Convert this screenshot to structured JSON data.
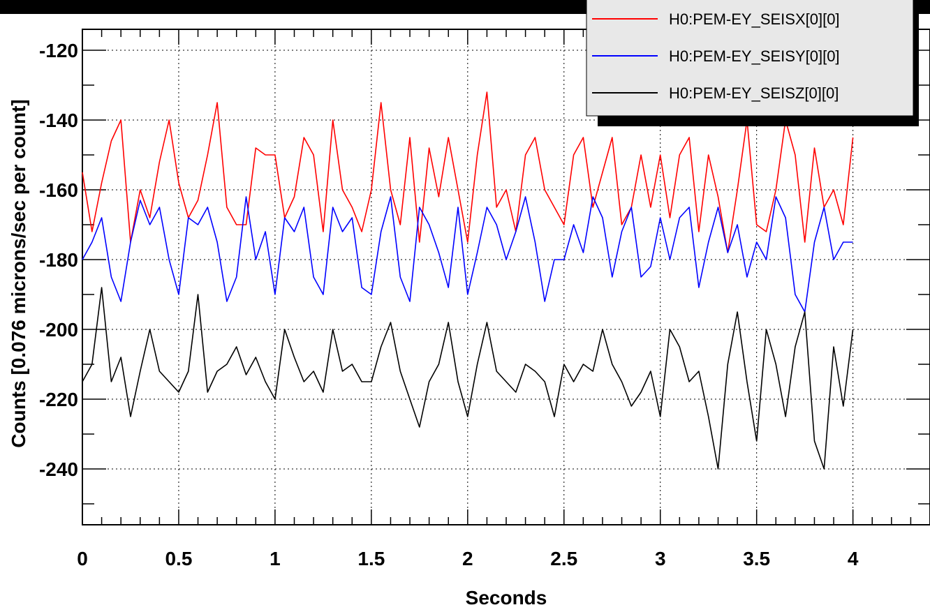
{
  "chart_data": {
    "type": "line",
    "title": "",
    "xlabel": "Seconds",
    "ylabel": "Counts [0.076 microns/sec per count]",
    "xlim": [
      0,
      4.4
    ],
    "ylim": [
      -256,
      -114
    ],
    "x_ticks": [
      0,
      0.5,
      1,
      1.5,
      2,
      2.5,
      3,
      3.5,
      4
    ],
    "x_tick_labels": [
      "0",
      "0.5",
      "1",
      "1.5",
      "2",
      "2.5",
      "3",
      "3.5",
      "4"
    ],
    "y_ticks": [
      -120,
      -140,
      -160,
      -180,
      -200,
      -220,
      -240
    ],
    "y_tick_labels": [
      "-120",
      "-140",
      "-160",
      "-180",
      "-200",
      "-220",
      "-240"
    ],
    "grid": true,
    "legend_position": "top-right",
    "series": [
      {
        "name": "H0:PEM-EY_SEISX[0][0]",
        "color": "#ff0000",
        "x": [
          0,
          0.05,
          0.1,
          0.15,
          0.2,
          0.25,
          0.3,
          0.35,
          0.4,
          0.45,
          0.5,
          0.55,
          0.6,
          0.65,
          0.7,
          0.75,
          0.8,
          0.85,
          0.9,
          0.95,
          1.0,
          1.05,
          1.1,
          1.15,
          1.2,
          1.25,
          1.3,
          1.35,
          1.4,
          1.45,
          1.5,
          1.55,
          1.6,
          1.65,
          1.7,
          1.75,
          1.8,
          1.85,
          1.9,
          1.95,
          2.0,
          2.05,
          2.1,
          2.15,
          2.2,
          2.25,
          2.3,
          2.35,
          2.4,
          2.45,
          2.5,
          2.55,
          2.6,
          2.65,
          2.7,
          2.75,
          2.8,
          2.85,
          2.9,
          2.95,
          3.0,
          3.05,
          3.1,
          3.15,
          3.2,
          3.25,
          3.3,
          3.35,
          3.4,
          3.45,
          3.5,
          3.55,
          3.6,
          3.65,
          3.7,
          3.75,
          3.8,
          3.85,
          3.9,
          3.95,
          4.0
        ],
        "y": [
          -155,
          -172,
          -158,
          -146,
          -140,
          -175,
          -160,
          -168,
          -152,
          -140,
          -158,
          -168,
          -163,
          -150,
          -135,
          -165,
          -170,
          -170,
          -148,
          -150,
          -150,
          -168,
          -162,
          -145,
          -150,
          -172,
          -140,
          -160,
          -165,
          -172,
          -160,
          -135,
          -160,
          -170,
          -145,
          -175,
          -148,
          -162,
          -145,
          -160,
          -175,
          -150,
          -132,
          -165,
          -160,
          -172,
          -150,
          -145,
          -160,
          -165,
          -170,
          -150,
          -145,
          -165,
          -155,
          -145,
          -170,
          -165,
          -150,
          -165,
          -150,
          -168,
          -150,
          -145,
          -172,
          -150,
          -162,
          -178,
          -160,
          -140,
          -170,
          -172,
          -160,
          -140,
          -150,
          -175,
          -148,
          -165,
          -160,
          -170,
          -145
        ]
      },
      {
        "name": "H0:PEM-EY_SEISY[0][0]",
        "color": "#0000ff",
        "x": [
          0,
          0.05,
          0.1,
          0.15,
          0.2,
          0.25,
          0.3,
          0.35,
          0.4,
          0.45,
          0.5,
          0.55,
          0.6,
          0.65,
          0.7,
          0.75,
          0.8,
          0.85,
          0.9,
          0.95,
          1.0,
          1.05,
          1.1,
          1.15,
          1.2,
          1.25,
          1.3,
          1.35,
          1.4,
          1.45,
          1.5,
          1.55,
          1.6,
          1.65,
          1.7,
          1.75,
          1.8,
          1.85,
          1.9,
          1.95,
          2.0,
          2.05,
          2.1,
          2.15,
          2.2,
          2.25,
          2.3,
          2.35,
          2.4,
          2.45,
          2.5,
          2.55,
          2.6,
          2.65,
          2.7,
          2.75,
          2.8,
          2.85,
          2.9,
          2.95,
          3.0,
          3.05,
          3.1,
          3.15,
          3.2,
          3.25,
          3.3,
          3.35,
          3.4,
          3.45,
          3.5,
          3.55,
          3.6,
          3.65,
          3.7,
          3.75,
          3.8,
          3.85,
          3.9,
          3.95,
          4.0
        ],
        "y": [
          -180,
          -175,
          -168,
          -185,
          -192,
          -175,
          -163,
          -170,
          -165,
          -180,
          -190,
          -168,
          -170,
          -165,
          -175,
          -192,
          -185,
          -162,
          -180,
          -172,
          -190,
          -168,
          -172,
          -165,
          -185,
          -190,
          -165,
          -172,
          -168,
          -188,
          -190,
          -172,
          -162,
          -185,
          -192,
          -165,
          -170,
          -178,
          -188,
          -165,
          -190,
          -178,
          -165,
          -170,
          -180,
          -172,
          -162,
          -175,
          -192,
          -180,
          -180,
          -170,
          -178,
          -162,
          -168,
          -185,
          -172,
          -165,
          -185,
          -182,
          -168,
          -180,
          -168,
          -165,
          -188,
          -175,
          -165,
          -178,
          -170,
          -185,
          -175,
          -180,
          -162,
          -168,
          -190,
          -195,
          -175,
          -165,
          -180,
          -175,
          -175
        ]
      },
      {
        "name": "H0:PEM-EY_SEISZ[0][0]",
        "color": "#000000",
        "x": [
          0,
          0.05,
          0.1,
          0.15,
          0.2,
          0.25,
          0.3,
          0.35,
          0.4,
          0.45,
          0.5,
          0.55,
          0.6,
          0.65,
          0.7,
          0.75,
          0.8,
          0.85,
          0.9,
          0.95,
          1.0,
          1.05,
          1.1,
          1.15,
          1.2,
          1.25,
          1.3,
          1.35,
          1.4,
          1.45,
          1.5,
          1.55,
          1.6,
          1.65,
          1.7,
          1.75,
          1.8,
          1.85,
          1.9,
          1.95,
          2.0,
          2.05,
          2.1,
          2.15,
          2.2,
          2.25,
          2.3,
          2.35,
          2.4,
          2.45,
          2.5,
          2.55,
          2.6,
          2.65,
          2.7,
          2.75,
          2.8,
          2.85,
          2.9,
          2.95,
          3.0,
          3.05,
          3.1,
          3.15,
          3.2,
          3.25,
          3.3,
          3.35,
          3.4,
          3.45,
          3.5,
          3.55,
          3.6,
          3.65,
          3.7,
          3.75,
          3.8,
          3.85,
          3.9,
          3.95,
          4.0
        ],
        "y": [
          -215,
          -210,
          -188,
          -215,
          -208,
          -225,
          -212,
          -200,
          -212,
          -215,
          -218,
          -212,
          -190,
          -218,
          -212,
          -210,
          -205,
          -213,
          -208,
          -215,
          -220,
          -200,
          -208,
          -215,
          -212,
          -218,
          -200,
          -212,
          -210,
          -215,
          -215,
          -205,
          -198,
          -212,
          -220,
          -228,
          -215,
          -210,
          -198,
          -215,
          -225,
          -210,
          -198,
          -212,
          -215,
          -218,
          -210,
          -212,
          -215,
          -225,
          -210,
          -215,
          -210,
          -212,
          -200,
          -210,
          -215,
          -222,
          -218,
          -212,
          -225,
          -200,
          -205,
          -215,
          -212,
          -225,
          -240,
          -210,
          -195,
          -215,
          -232,
          -200,
          -210,
          -225,
          -205,
          -195,
          -232,
          -240,
          -205,
          -222,
          -200
        ]
      }
    ]
  }
}
